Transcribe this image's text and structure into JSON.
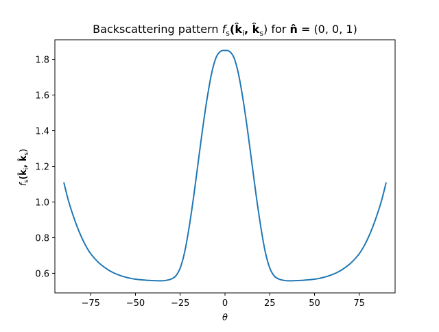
{
  "chart_data": {
    "type": "line",
    "title": {
      "main": "Backscattering pattern ",
      "f": "f",
      "f_sub": "s",
      "args": "(k̂",
      "ki_sub": "i",
      "comma": ", k̂",
      "ks_sub": "s",
      "rest": ") for ",
      "n": "n̂",
      "eq": " = (0, 0, 1)"
    },
    "xlabel": "θ",
    "ylabel": {
      "f": "f",
      "f_sub": "s",
      "open": "(k̂",
      "ki_sub": "i",
      "comma": ", k̂",
      "ks_sub": "s",
      "close": ")"
    },
    "xlim": [
      -95,
      95
    ],
    "ylim": [
      0.49,
      1.91
    ],
    "x_ticks": [
      -75,
      -50,
      -25,
      0,
      25,
      50,
      75
    ],
    "x_tick_labels": [
      "−75",
      "−50",
      "−25",
      "0",
      "25",
      "50",
      "75"
    ],
    "y_ticks": [
      0.6,
      0.8,
      1.0,
      1.2,
      1.4,
      1.6,
      1.8
    ],
    "y_tick_labels": [
      "0.6",
      "0.8",
      "1.0",
      "1.2",
      "1.4",
      "1.6",
      "1.8"
    ],
    "grid": false,
    "series": [
      {
        "color": "#1f77b4",
        "x": [
          -90,
          -87.5,
          -85,
          -82.5,
          -80,
          -77.5,
          -75,
          -72.5,
          -70,
          -67.5,
          -65,
          -62.5,
          -60,
          -57.5,
          -55,
          -52.5,
          -50,
          -47.5,
          -45,
          -42.5,
          -40,
          -37.5,
          -35,
          -32.5,
          -30,
          -27.5,
          -25,
          -22.5,
          -20,
          -17.5,
          -15,
          -12.5,
          -10,
          -7.5,
          -5,
          -2.5,
          0,
          2.5,
          5,
          7.5,
          10,
          12.5,
          15,
          17.5,
          20,
          22.5,
          25,
          27.5,
          30,
          32.5,
          35,
          37.5,
          40,
          42.5,
          45,
          47.5,
          50,
          52.5,
          55,
          57.5,
          60,
          62.5,
          65,
          67.5,
          70,
          72.5,
          75,
          77.5,
          80,
          82.5,
          85,
          87.5,
          90
        ],
        "y": [
          1.11,
          1.01,
          0.93,
          0.86,
          0.8,
          0.75,
          0.71,
          0.68,
          0.655,
          0.635,
          0.618,
          0.604,
          0.593,
          0.584,
          0.577,
          0.571,
          0.567,
          0.564,
          0.562,
          0.56,
          0.559,
          0.558,
          0.558,
          0.561,
          0.568,
          0.585,
          0.63,
          0.72,
          0.86,
          1.03,
          1.22,
          1.41,
          1.58,
          1.72,
          1.81,
          1.845,
          1.85,
          1.845,
          1.81,
          1.72,
          1.58,
          1.41,
          1.22,
          1.03,
          0.86,
          0.72,
          0.63,
          0.585,
          0.568,
          0.561,
          0.558,
          0.558,
          0.559,
          0.56,
          0.562,
          0.564,
          0.567,
          0.571,
          0.577,
          0.584,
          0.593,
          0.604,
          0.618,
          0.635,
          0.655,
          0.68,
          0.71,
          0.75,
          0.8,
          0.86,
          0.93,
          1.01,
          1.11
        ]
      }
    ]
  }
}
